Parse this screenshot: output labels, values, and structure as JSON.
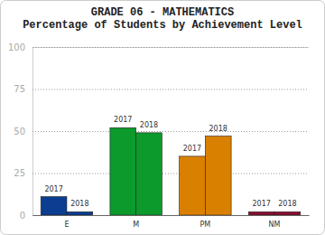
{
  "chart_data": {
    "type": "bar",
    "title": "GRADE 06 - MATHEMATICS",
    "subtitle": "Percentage of Students by Achievement Level",
    "categories": [
      "E",
      "M",
      "PM",
      "NM"
    ],
    "series": [
      {
        "name": "2017",
        "values": [
          11,
          52,
          35,
          2
        ],
        "colors": [
          "#0b3d91",
          "#0c9a2c",
          "#d98000",
          "#8c0c2e"
        ]
      },
      {
        "name": "2018",
        "values": [
          2,
          49,
          47,
          2
        ],
        "colors": [
          "#0b3d91",
          "#0c9a2c",
          "#d98000",
          "#8c0c2e"
        ]
      }
    ],
    "ylim": [
      0,
      100
    ],
    "yticks": [
      0,
      25,
      50,
      75,
      100
    ],
    "grid": true
  }
}
